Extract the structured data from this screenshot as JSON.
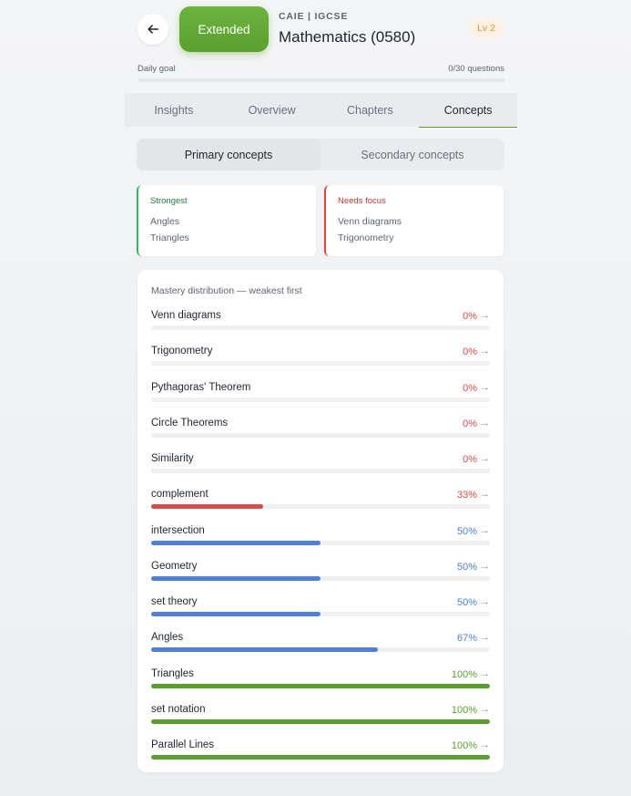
{
  "header": {
    "back_icon": "arrow-left-icon",
    "level_pill": "Extended",
    "board": "CAIE | IGCSE",
    "subject": "Mathematics (0580)",
    "level_badge": "Lv 2"
  },
  "daily_goal": {
    "label": "Daily goal",
    "value": "0/30 questions",
    "progress": 0
  },
  "tabs": [
    {
      "label": "Insights"
    },
    {
      "label": "Overview"
    },
    {
      "label": "Chapters"
    },
    {
      "label": "Concepts",
      "active": true
    }
  ],
  "segment": {
    "primary": "Primary concepts",
    "secondary": "Secondary concepts"
  },
  "strongest": {
    "title": "Strongest",
    "items": [
      "Angles",
      "Triangles"
    ]
  },
  "needs_focus": {
    "title": "Needs focus",
    "items": [
      "Venn diagrams",
      "Trigonometry"
    ]
  },
  "mastery": {
    "title": "Mastery distribution — weakest first",
    "arrow": "→",
    "colors": {
      "low": "#d94b48",
      "mid": "#4f80d6",
      "high": "#5a9f2f"
    },
    "rows": [
      {
        "name": "Venn diagrams",
        "pct_label": "0%",
        "value": 0,
        "level": "low"
      },
      {
        "name": "Trigonometry",
        "pct_label": "0%",
        "value": 0,
        "level": "low"
      },
      {
        "name": "Pythagoras' Theorem",
        "pct_label": "0%",
        "value": 0,
        "level": "low"
      },
      {
        "name": "Circle Theorems",
        "pct_label": "0%",
        "value": 0,
        "level": "low"
      },
      {
        "name": "Similarity",
        "pct_label": "0%",
        "value": 0,
        "level": "low"
      },
      {
        "name": "complement",
        "pct_label": "33%",
        "value": 33,
        "level": "low"
      },
      {
        "name": "intersection",
        "pct_label": "50%",
        "value": 50,
        "level": "mid"
      },
      {
        "name": "Geometry",
        "pct_label": "50%",
        "value": 50,
        "level": "mid"
      },
      {
        "name": "set theory",
        "pct_label": "50%",
        "value": 50,
        "level": "mid"
      },
      {
        "name": "Angles",
        "pct_label": "67%",
        "value": 67,
        "level": "mid"
      },
      {
        "name": "Triangles",
        "pct_label": "100%",
        "value": 100,
        "level": "high"
      },
      {
        "name": "set notation",
        "pct_label": "100%",
        "value": 100,
        "level": "high"
      },
      {
        "name": "Parallel Lines",
        "pct_label": "100%",
        "value": 100,
        "level": "high"
      }
    ]
  }
}
